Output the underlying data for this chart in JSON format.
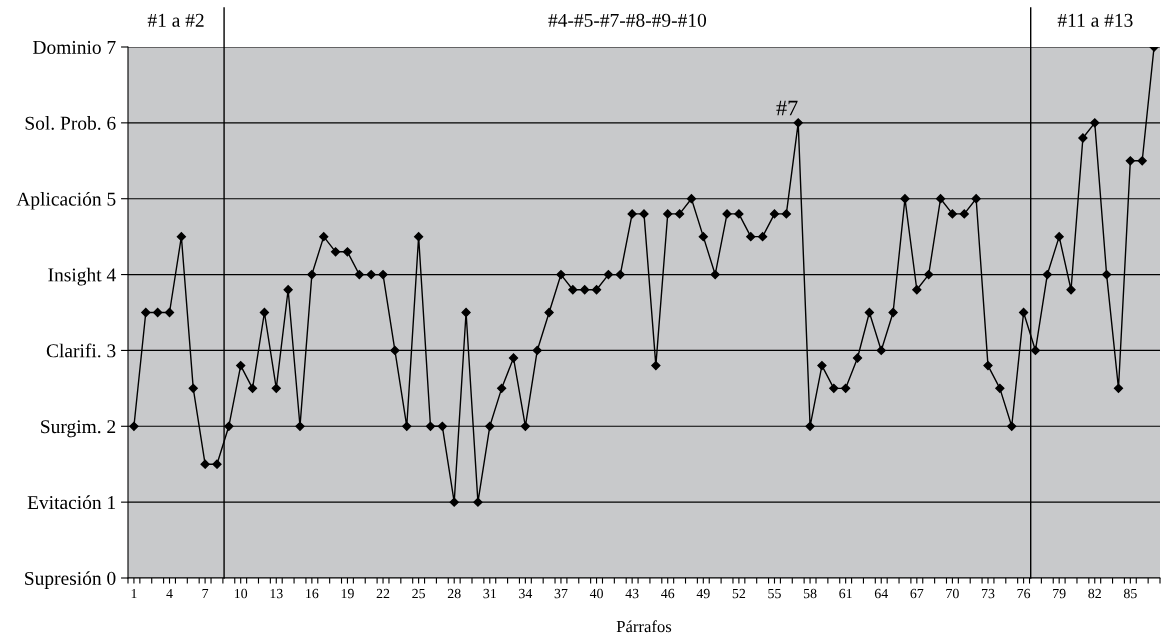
{
  "chart_data": {
    "type": "line",
    "xlabel": "Párrafos",
    "x": [
      1,
      2,
      3,
      4,
      5,
      6,
      7,
      8,
      9,
      10,
      11,
      12,
      13,
      14,
      15,
      16,
      17,
      18,
      19,
      20,
      21,
      22,
      23,
      24,
      25,
      26,
      27,
      28,
      29,
      30,
      31,
      32,
      33,
      34,
      35,
      36,
      37,
      38,
      39,
      40,
      41,
      42,
      43,
      44,
      45,
      46,
      47,
      48,
      49,
      50,
      51,
      52,
      53,
      54,
      55,
      56,
      57,
      58,
      59,
      60,
      61,
      62,
      63,
      64,
      65,
      66,
      67,
      68,
      69,
      70,
      71,
      72,
      73,
      74,
      75,
      76,
      77,
      78,
      79,
      80,
      81,
      82,
      83,
      84,
      85,
      86,
      87
    ],
    "series": [
      {
        "color": "#000000",
        "values": [
          2,
          3.5,
          3.5,
          3.5,
          4.5,
          2.5,
          1.5,
          1.5,
          2,
          2.8,
          2.5,
          3.5,
          2.5,
          3.8,
          2,
          4,
          4.5,
          4.3,
          4.3,
          4,
          4,
          4,
          3,
          2,
          4.5,
          2,
          2,
          1,
          3.5,
          1,
          2,
          2.5,
          2.9,
          2,
          3,
          3.5,
          4,
          3.8,
          3.8,
          3.8,
          4,
          4,
          4.8,
          4.8,
          2.8,
          4.8,
          4.8,
          5,
          4.5,
          4,
          4.8,
          4.8,
          4.5,
          4.5,
          4.8,
          4.8,
          6,
          2,
          2.8,
          2.5,
          2.5,
          2.9,
          3.5,
          3,
          3.5,
          5,
          3.8,
          4,
          5,
          4.8,
          4.8,
          5,
          2.8,
          2.5,
          2,
          3.5,
          3,
          4,
          4.5,
          3.8,
          5.8,
          6,
          4,
          2.5,
          5.5,
          5.5,
          7
        ]
      }
    ],
    "marker": "diamond",
    "line_style": "solid",
    "grid": "y",
    "xlim": [
      0.5,
      87.5
    ],
    "xticks": [
      1,
      4,
      7,
      10,
      13,
      16,
      19,
      22,
      25,
      28,
      31,
      34,
      37,
      40,
      43,
      46,
      49,
      52,
      55,
      58,
      61,
      64,
      67,
      70,
      73,
      76,
      79,
      82,
      85,
      {
        "value": 0.5,
        "label": null
      },
      {
        "value": 1.5,
        "label": null
      },
      {
        "value": 2.5,
        "label": null
      },
      {
        "value": 3.5,
        "label": null
      },
      {
        "value": 4.5,
        "label": null
      },
      {
        "value": 5.5,
        "label": null
      },
      {
        "value": 6.5,
        "label": null
      },
      {
        "value": 7.5,
        "label": null
      },
      {
        "value": 8.5,
        "label": null
      },
      {
        "value": 9.5,
        "label": null
      },
      {
        "value": 10.5,
        "label": null
      },
      {
        "value": 11.5,
        "label": null
      },
      {
        "value": 12.5,
        "label": null
      },
      {
        "value": 13.5,
        "label": null
      },
      {
        "value": 14.5,
        "label": null
      },
      {
        "value": 15.5,
        "label": null
      },
      {
        "value": 16.5,
        "label": null
      },
      {
        "value": 17.5,
        "label": null
      },
      {
        "value": 18.5,
        "label": null
      },
      {
        "value": 19.5,
        "label": null
      },
      {
        "value": 20.5,
        "label": null
      },
      {
        "value": 21.5,
        "label": null
      },
      {
        "value": 22.5,
        "label": null
      },
      {
        "value": 23.5,
        "label": null
      },
      {
        "value": 24.5,
        "label": null
      },
      {
        "value": 25.5,
        "label": null
      },
      {
        "value": 26.5,
        "label": null
      },
      {
        "value": 27.5,
        "label": null
      },
      {
        "value": 28.5,
        "label": null
      },
      {
        "value": 29.5,
        "label": null
      },
      {
        "value": 30.5,
        "label": null
      },
      {
        "value": 31.5,
        "label": null
      },
      {
        "value": 32.5,
        "label": null
      },
      {
        "value": 33.5,
        "label": null
      },
      {
        "value": 34.5,
        "label": null
      },
      {
        "value": 35.5,
        "label": null
      },
      {
        "value": 36.5,
        "label": null
      },
      {
        "value": 37.5,
        "label": null
      },
      {
        "value": 38.5,
        "label": null
      },
      {
        "value": 39.5,
        "label": null
      },
      {
        "value": 40.5,
        "label": null
      },
      {
        "value": 41.5,
        "label": null
      },
      {
        "value": 42.5,
        "label": null
      },
      {
        "value": 43.5,
        "label": null
      },
      {
        "value": 44.5,
        "label": null
      },
      {
        "value": 45.5,
        "label": null
      },
      {
        "value": 46.5,
        "label": null
      },
      {
        "value": 47.5,
        "label": null
      },
      {
        "value": 48.5,
        "label": null
      },
      {
        "value": 49.5,
        "label": null
      },
      {
        "value": 50.5,
        "label": null
      },
      {
        "value": 51.5,
        "label": null
      },
      {
        "value": 52.5,
        "label": null
      },
      {
        "value": 53.5,
        "label": null
      },
      {
        "value": 54.5,
        "label": null
      },
      {
        "value": 55.5,
        "label": null
      },
      {
        "value": 56.5,
        "label": null
      },
      {
        "value": 57.5,
        "label": null
      },
      {
        "value": 58.5,
        "label": null
      },
      {
        "value": 59.5,
        "label": null
      },
      {
        "value": 60.5,
        "label": null
      },
      {
        "value": 61.5,
        "label": null
      },
      {
        "value": 62.5,
        "label": null
      },
      {
        "value": 63.5,
        "label": null
      },
      {
        "value": 64.5,
        "label": null
      },
      {
        "value": 65.5,
        "label": null
      },
      {
        "value": 66.5,
        "label": null
      },
      {
        "value": 67.5,
        "label": null
      },
      {
        "value": 68.5,
        "label": null
      },
      {
        "value": 69.5,
        "label": null
      },
      {
        "value": 70.5,
        "label": null
      },
      {
        "value": 71.5,
        "label": null
      },
      {
        "value": 72.5,
        "label": null
      },
      {
        "value": 73.5,
        "label": null
      },
      {
        "value": 74.5,
        "label": null
      },
      {
        "value": 75.5,
        "label": null
      },
      {
        "value": 76.5,
        "label": null
      },
      {
        "value": 77.5,
        "label": null
      },
      {
        "value": 78.5,
        "label": null
      },
      {
        "value": 79.5,
        "label": null
      },
      {
        "value": 80.5,
        "label": null
      },
      {
        "value": 81.5,
        "label": null
      },
      {
        "value": 82.5,
        "label": null
      },
      {
        "value": 83.5,
        "label": null
      },
      {
        "value": 84.5,
        "label": null
      },
      {
        "value": 85.5,
        "label": null
      },
      {
        "value": 86.5,
        "label": null
      },
      {
        "value": 87.5,
        "label": null
      }
    ],
    "ylim": [
      0,
      7
    ],
    "yticks": [
      {
        "value": 0,
        "label": "Supresión 0"
      },
      {
        "value": 1,
        "label": "Evitación 1"
      },
      {
        "value": 2,
        "label": "Surgim. 2"
      },
      {
        "value": 3,
        "label": "Clarifi. 3"
      },
      {
        "value": 4,
        "label": "Insight 4"
      },
      {
        "value": 5,
        "label": "Aplicación 5"
      },
      {
        "value": 6,
        "label": "Sol. Prob. 6"
      },
      {
        "value": 7,
        "label": "Dominio 7"
      }
    ],
    "ref_lines": [
      {
        "axis": "x",
        "value": 8.6,
        "color": "#000000"
      },
      {
        "axis": "x",
        "value": 76.6,
        "color": "#000000"
      }
    ],
    "annotations": [
      "#1 a #2",
      "#4-#5-#7-#8-#9-#10",
      "#11 a #13",
      {
        "text": "#7",
        "x": 57,
        "y": 6
      }
    ]
  }
}
